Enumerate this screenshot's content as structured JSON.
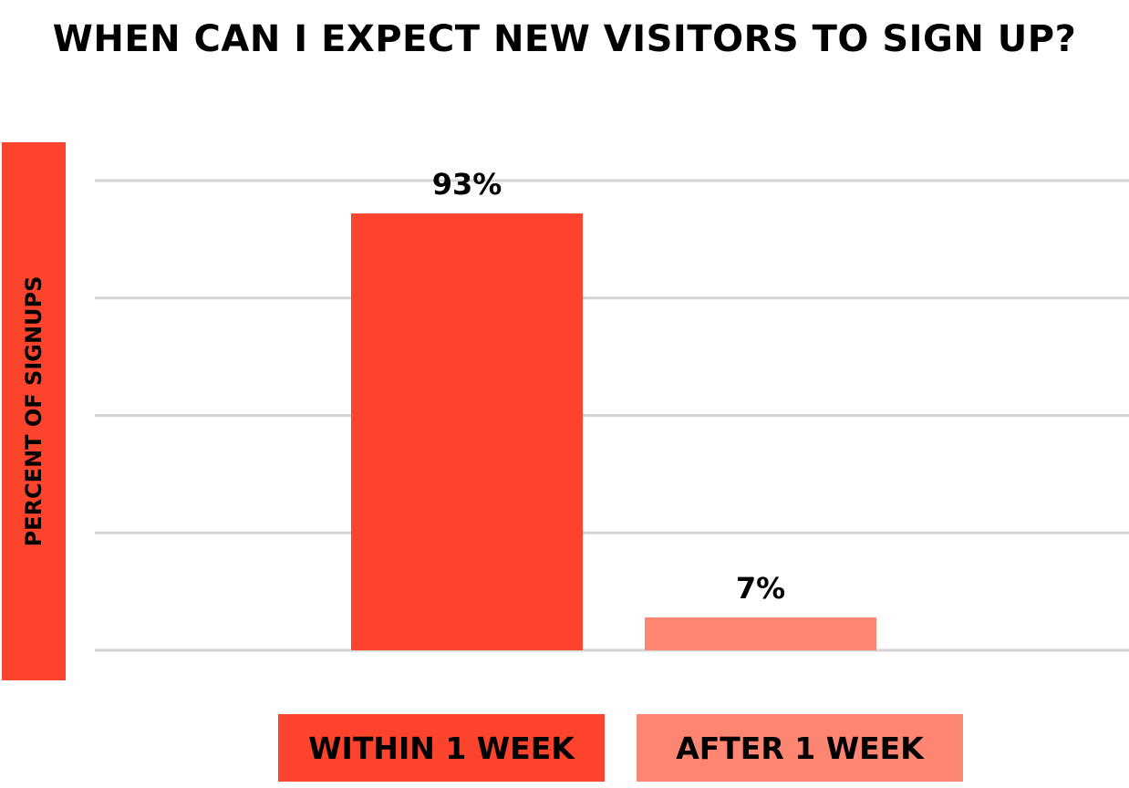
{
  "chart_data": {
    "type": "bar",
    "title": "WHEN CAN I EXPECT NEW VISITORS TO SIGN UP?",
    "ylabel": "PERCENT OF SIGNUPS",
    "categories": [
      "WITHIN 1 WEEK",
      "AFTER 1 WEEK"
    ],
    "values": [
      93,
      7
    ],
    "data_labels": [
      "93%",
      "7%"
    ],
    "ylim": [
      0,
      100
    ],
    "grid": true,
    "bar_colors": [
      "#fc432b",
      "#fd8672"
    ]
  },
  "colors": {
    "primary": "#fc432b",
    "secondary": "#fd8672",
    "grid": "#d3d3d3",
    "text": "#000000"
  }
}
